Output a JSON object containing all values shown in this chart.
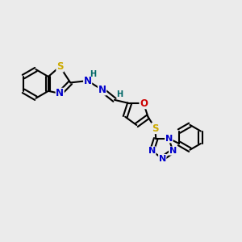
{
  "background_color": "#ebebeb",
  "bond_color": "#000000",
  "bond_lw": 1.5,
  "font_size": 8.5,
  "atom_colors": {
    "N": "#0000cc",
    "O": "#cc0000",
    "S": "#ccaa00",
    "H": "#006666"
  },
  "figsize": [
    3.0,
    3.0
  ],
  "dpi": 100
}
